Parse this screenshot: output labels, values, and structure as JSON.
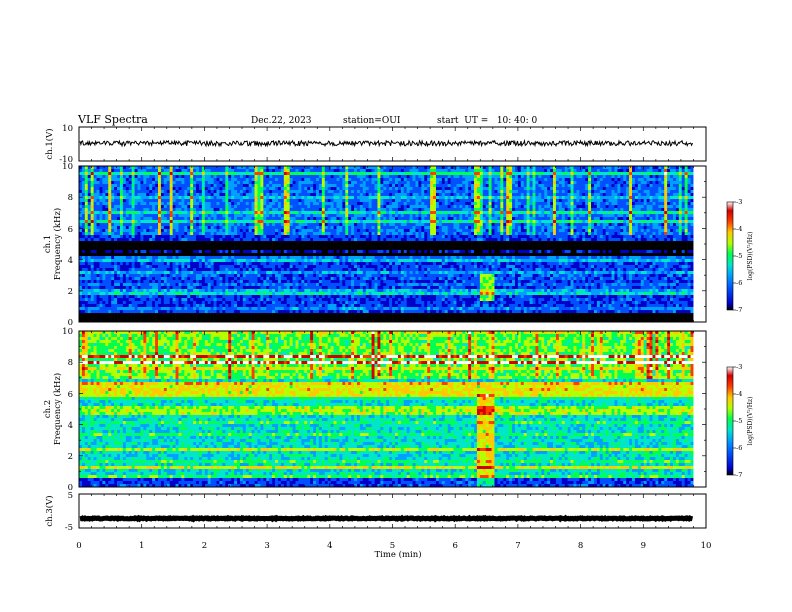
{
  "header": {
    "title": "VLF Spectra",
    "date": "Dec.22, 2023",
    "station": "station=OUI",
    "start": "start  UT =   10: 40: 0"
  },
  "chart_data": [
    {
      "type": "line",
      "name": "ch1-waveform",
      "ylabel": "ch.1(V)",
      "yticks": [
        "10",
        "-10"
      ],
      "ylim": [
        -10,
        10
      ],
      "x": [
        0,
        9.8
      ],
      "signal_level_v": 0.4,
      "signal_amplitude_v": 1.5
    },
    {
      "type": "heatmap",
      "name": "ch1-spectrogram",
      "ylabel": "ch.1",
      "ylabel2": "Frequency (kHz)",
      "yticks": [
        "0",
        "2",
        "4",
        "6",
        "8",
        "10"
      ],
      "ylim_khz": [
        0,
        10
      ],
      "xlim_min": [
        0,
        9.8
      ],
      "features": {
        "noise_floor_log": -6.2,
        "impulsive_bursts_above_khz": 5.5,
        "dark_band_khz": [
          4.3,
          5.2
        ],
        "event_time_min": 6.5,
        "event_freq_khz": 2.2
      }
    },
    {
      "type": "heatmap",
      "name": "ch2-spectrogram",
      "ylabel": "ch.2",
      "ylabel2": "Frequency (kHz)",
      "yticks": [
        "0",
        "2",
        "4",
        "6",
        "8",
        "10"
      ],
      "ylim_khz": [
        0,
        10
      ],
      "xlim_min": [
        0,
        9.8
      ],
      "features": {
        "noise_floor_log": -5.4,
        "green_band_khz": [
          5.8,
          6.8
        ],
        "red_lines_khz": [
          8.0,
          8.4
        ],
        "event_time_min": 6.5
      }
    },
    {
      "type": "line",
      "name": "ch3-waveform",
      "ylabel": "ch.3(V)",
      "yticks": [
        "5",
        "-5"
      ],
      "ylim": [
        -5,
        5
      ],
      "x": [
        0,
        9.8
      ],
      "signal_level_v": -2.2,
      "signal_amplitude_v": 0.15
    }
  ],
  "xaxis": {
    "label": "Time (min)",
    "ticks": [
      "0",
      "1",
      "2",
      "3",
      "4",
      "5",
      "6",
      "7",
      "8",
      "9",
      "10"
    ],
    "xlim": [
      0,
      10
    ]
  },
  "colorbar": {
    "label": "log(PSD)(V²/Hz)",
    "ticks": [
      "-3",
      "-4",
      "-5",
      "-6",
      "-7"
    ],
    "range": [
      -7,
      -3
    ],
    "colors": [
      "#000000",
      "#0000c8",
      "#0050ff",
      "#00a0ff",
      "#00e6c8",
      "#00ff50",
      "#b4ff00",
      "#ffc800",
      "#ff3c00",
      "#d20000",
      "#ffffff"
    ]
  }
}
